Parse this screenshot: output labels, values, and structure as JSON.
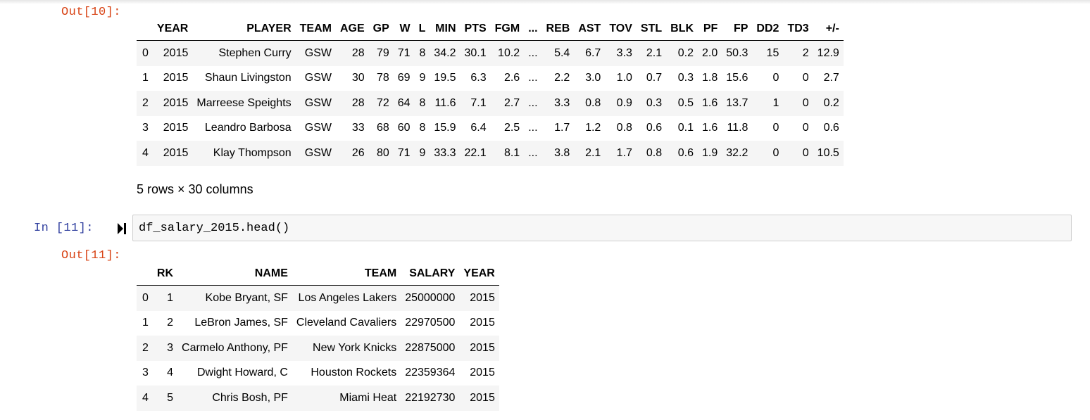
{
  "cells": {
    "out10_prompt": "Out[10]:",
    "in11_prompt": "In [11]:",
    "in11_code": "df_salary_2015.head()",
    "out11_prompt": "Out[11]:"
  },
  "table1": {
    "columns": [
      "",
      "YEAR",
      "PLAYER",
      "TEAM",
      "AGE",
      "GP",
      "W",
      "L",
      "MIN",
      "PTS",
      "FGM",
      "...",
      "REB",
      "AST",
      "TOV",
      "STL",
      "BLK",
      "PF",
      "FP",
      "DD2",
      "TD3",
      "+/-"
    ],
    "rows": [
      [
        "0",
        "2015",
        "Stephen Curry",
        "GSW",
        "28",
        "79",
        "71",
        "8",
        "34.2",
        "30.1",
        "10.2",
        "...",
        "5.4",
        "6.7",
        "3.3",
        "2.1",
        "0.2",
        "2.0",
        "50.3",
        "15",
        "2",
        "12.9"
      ],
      [
        "1",
        "2015",
        "Shaun Livingston",
        "GSW",
        "30",
        "78",
        "69",
        "9",
        "19.5",
        "6.3",
        "2.6",
        "...",
        "2.2",
        "3.0",
        "1.0",
        "0.7",
        "0.3",
        "1.8",
        "15.6",
        "0",
        "0",
        "2.7"
      ],
      [
        "2",
        "2015",
        "Marreese Speights",
        "GSW",
        "28",
        "72",
        "64",
        "8",
        "11.6",
        "7.1",
        "2.7",
        "...",
        "3.3",
        "0.8",
        "0.9",
        "0.3",
        "0.5",
        "1.6",
        "13.7",
        "1",
        "0",
        "0.2"
      ],
      [
        "3",
        "2015",
        "Leandro Barbosa",
        "GSW",
        "33",
        "68",
        "60",
        "8",
        "15.9",
        "6.4",
        "2.5",
        "...",
        "1.7",
        "1.2",
        "0.8",
        "0.6",
        "0.1",
        "1.6",
        "11.8",
        "0",
        "0",
        "0.6"
      ],
      [
        "4",
        "2015",
        "Klay Thompson",
        "GSW",
        "26",
        "80",
        "71",
        "9",
        "33.3",
        "22.1",
        "8.1",
        "...",
        "3.8",
        "2.1",
        "1.7",
        "0.8",
        "0.6",
        "1.9",
        "32.2",
        "0",
        "0",
        "10.5"
      ]
    ],
    "shape": "5 rows × 30 columns"
  },
  "table2": {
    "columns": [
      "",
      "RK",
      "NAME",
      "TEAM",
      "SALARY",
      "YEAR"
    ],
    "rows": [
      [
        "0",
        "1",
        "Kobe Bryant, SF",
        "Los Angeles Lakers",
        "25000000",
        "2015"
      ],
      [
        "1",
        "2",
        "LeBron James, SF",
        "Cleveland Cavaliers",
        "22970500",
        "2015"
      ],
      [
        "2",
        "3",
        "Carmelo Anthony, PF",
        "New York Knicks",
        "22875000",
        "2015"
      ],
      [
        "3",
        "4",
        "Dwight Howard, C",
        "Houston Rockets",
        "22359364",
        "2015"
      ],
      [
        "4",
        "5",
        "Chris Bosh, PF",
        "Miami Heat",
        "22192730",
        "2015"
      ]
    ]
  },
  "icons": {
    "run": "run-cell-icon"
  },
  "colors": {
    "out_prompt": "#d84315",
    "in_prompt": "#303f9f",
    "stripe": "#f5f5f5",
    "input_bg": "#f7f7f7",
    "input_border": "#cfcfcf"
  }
}
